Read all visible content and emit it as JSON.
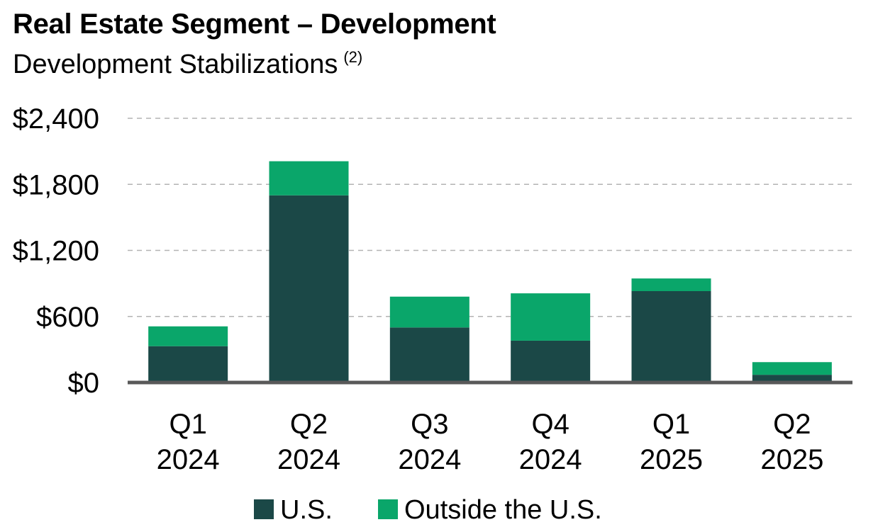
{
  "header": {
    "title": "Real Estate Segment – Development",
    "subtitle": "Development Stabilizations",
    "footnote_marker": "(2)"
  },
  "colors": {
    "us": "#1b4847",
    "outside_us": "#0aa66a",
    "gridline": "#b3b3b3",
    "axis": "#595959"
  },
  "chart_data": {
    "type": "bar",
    "stacked": true,
    "categories": [
      [
        "Q1",
        "2024"
      ],
      [
        "Q2",
        "2024"
      ],
      [
        "Q3",
        "2024"
      ],
      [
        "Q4",
        "2024"
      ],
      [
        "Q1",
        "2025"
      ],
      [
        "Q2",
        "2025"
      ]
    ],
    "series": [
      {
        "name": "U.S.",
        "values": [
          330,
          1700,
          500,
          380,
          830,
          70
        ]
      },
      {
        "name": "Outside the U.S.",
        "values": [
          180,
          310,
          280,
          430,
          115,
          115
        ]
      }
    ],
    "y_ticks": [
      0,
      600,
      1200,
      1800,
      2400
    ],
    "y_tick_labels": [
      "$0",
      "$600",
      "$1,200",
      "$1,800",
      "$2,400"
    ],
    "ylim": [
      0,
      2400
    ],
    "grid": true,
    "legend_position": "bottom"
  }
}
